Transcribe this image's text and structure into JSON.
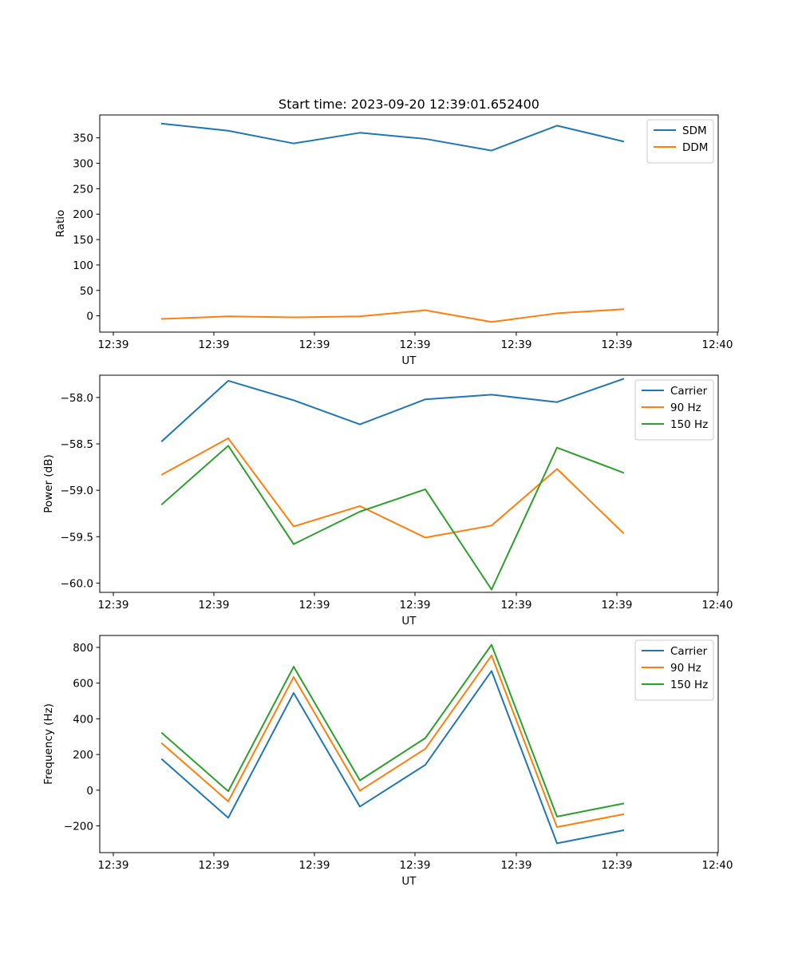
{
  "figure_title": "Start time: 2023-09-20 12:39:01.652400",
  "chart_data": [
    {
      "type": "line",
      "title": "Start time: 2023-09-20 12:39:01.652400",
      "xlabel": "UT",
      "ylabel": "Ratio",
      "x_tick_labels": [
        "12:39",
        "12:39",
        "12:39",
        "12:39",
        "12:39",
        "12:39",
        "12:40"
      ],
      "y_ticks": [
        0,
        50,
        100,
        150,
        200,
        250,
        300,
        350
      ],
      "y_tick_labels": [
        "0",
        "50",
        "100",
        "150",
        "200",
        "250",
        "300",
        "350"
      ],
      "ylim": [
        -32,
        395
      ],
      "legend_position": "top-right",
      "series": [
        {
          "name": "SDM",
          "color": "#1f77b4",
          "values": [
            378,
            364,
            339,
            360,
            348,
            325,
            374,
            343
          ]
        },
        {
          "name": "DDM",
          "color": "#ff7f0e",
          "values": [
            -6,
            -1,
            -3,
            -1,
            11,
            -12,
            5,
            13
          ]
        }
      ]
    },
    {
      "type": "line",
      "title": "",
      "xlabel": "UT",
      "ylabel": "Power (dB)",
      "x_tick_labels": [
        "12:39",
        "12:39",
        "12:39",
        "12:39",
        "12:39",
        "12:39",
        "12:40"
      ],
      "y_ticks": [
        -58.0,
        -58.5,
        -59.0,
        -59.5,
        -60.0
      ],
      "y_tick_labels": [
        "−58.0",
        "−58.5",
        "−59.0",
        "−59.5",
        "−60.0"
      ],
      "ylim": [
        -60.1,
        -57.76
      ],
      "legend_position": "top-right",
      "series": [
        {
          "name": "Carrier",
          "color": "#1f77b4",
          "values": [
            -58.47,
            -57.82,
            -58.03,
            -58.29,
            -58.02,
            -57.97,
            -58.05,
            -57.8
          ]
        },
        {
          "name": "90 Hz",
          "color": "#ff7f0e",
          "values": [
            -58.83,
            -58.44,
            -59.39,
            -59.17,
            -59.51,
            -59.38,
            -58.77,
            -59.46
          ]
        },
        {
          "name": "150 Hz",
          "color": "#2ca02c",
          "values": [
            -59.15,
            -58.52,
            -59.58,
            -59.23,
            -58.99,
            -60.07,
            -58.54,
            -58.81
          ]
        }
      ]
    },
    {
      "type": "line",
      "title": "",
      "xlabel": "UT",
      "ylabel": "Frequency (Hz)",
      "x_tick_labels": [
        "12:39",
        "12:39",
        "12:39",
        "12:39",
        "12:39",
        "12:39",
        "12:40"
      ],
      "y_ticks": [
        -200,
        0,
        200,
        400,
        600,
        800
      ],
      "y_tick_labels": [
        "−200",
        "0",
        "200",
        "400",
        "600",
        "800"
      ],
      "ylim": [
        -350,
        867
      ],
      "legend_position": "top-right",
      "series": [
        {
          "name": "Carrier",
          "color": "#1f77b4",
          "values": [
            173,
            -155,
            545,
            -92,
            142,
            668,
            -298,
            -225
          ]
        },
        {
          "name": "90 Hz",
          "color": "#ff7f0e",
          "values": [
            262,
            -63,
            634,
            -3,
            232,
            755,
            -207,
            -135
          ]
        },
        {
          "name": "150 Hz",
          "color": "#2ca02c",
          "values": [
            320,
            -6,
            692,
            55,
            292,
            815,
            -148,
            -75
          ]
        }
      ]
    }
  ]
}
